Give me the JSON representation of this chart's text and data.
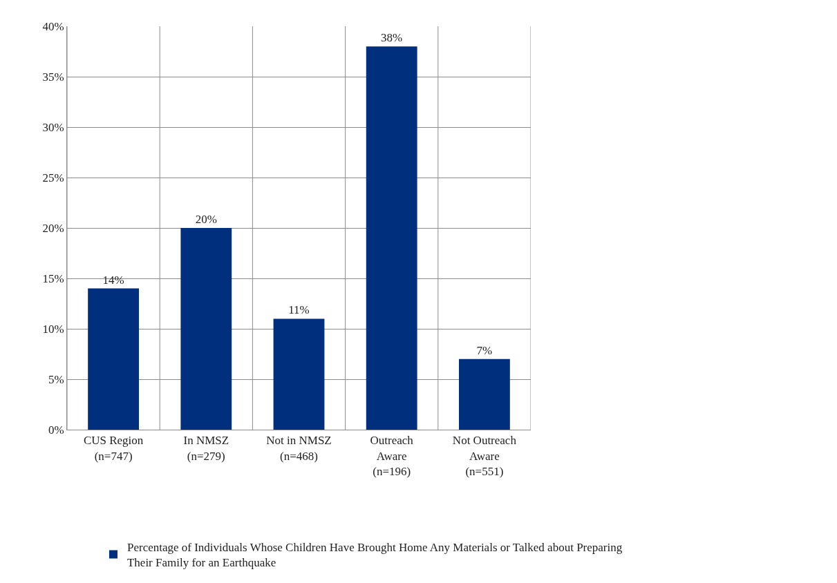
{
  "chart_data": {
    "type": "bar",
    "categories": [
      "CUS Region\n(n=747)",
      "In NMSZ\n(n=279)",
      "Not in NMSZ\n(n=468)",
      "Outreach\nAware\n(n=196)",
      "Not Outreach\nAware\n(n=551)"
    ],
    "series": [
      {
        "name": "Percentage of Individuals Whose Children Have Brought Home Any Materials or Talked about Preparing Their Family for an Earthquake",
        "color": "#002f7e",
        "values": [
          14,
          20,
          11,
          38,
          7
        ]
      }
    ],
    "value_labels": [
      "14%",
      "20%",
      "11%",
      "38%",
      "7%"
    ],
    "ylim": [
      0,
      40
    ],
    "yticks": [
      {
        "value": 0,
        "label": "0%"
      },
      {
        "value": 5,
        "label": "5%"
      },
      {
        "value": 10,
        "label": "10%"
      },
      {
        "value": 15,
        "label": "15%"
      },
      {
        "value": 20,
        "label": "20%"
      },
      {
        "value": 25,
        "label": "25%"
      },
      {
        "value": 30,
        "label": "30%"
      },
      {
        "value": 35,
        "label": "35%"
      },
      {
        "value": 40,
        "label": "40%"
      }
    ],
    "grid": true,
    "legend": "bottom"
  }
}
